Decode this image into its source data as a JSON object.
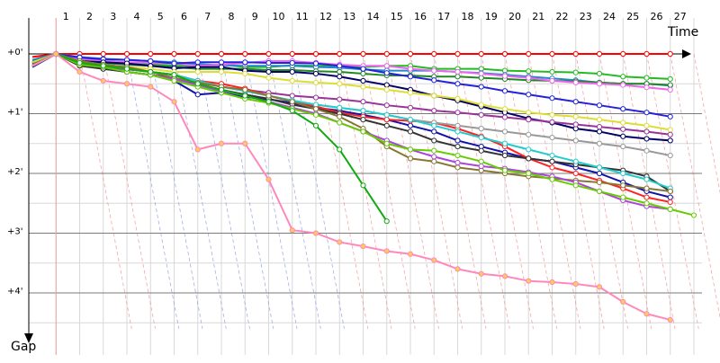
{
  "chart_data": {
    "type": "line",
    "xlabel": "Time",
    "ylabel": "Gap",
    "x_ticks": [
      "1",
      "2",
      "3",
      "4",
      "5",
      "6",
      "7",
      "8",
      "9",
      "10",
      "11",
      "12",
      "13",
      "14",
      "15",
      "16",
      "17",
      "18",
      "19",
      "20",
      "21",
      "22",
      "23",
      "24",
      "25",
      "26",
      "27"
    ],
    "y_ticks": [
      "+0'",
      "+1'",
      "+2'",
      "+3'",
      "+4'"
    ],
    "xlim": [
      0,
      28.6
    ],
    "ylim": [
      0,
      4.9
    ],
    "grid": true,
    "legend": "none",
    "series": [
      {
        "color": "#ff0000",
        "values": [
          0.05,
          0,
          0,
          0,
          0,
          0,
          0,
          0,
          0,
          0,
          0,
          0,
          0,
          0,
          0,
          0,
          0,
          0,
          0,
          0,
          0,
          0,
          0,
          0,
          0,
          0,
          0,
          0
        ]
      },
      {
        "color": "#22bb22",
        "values": [
          0.12,
          0,
          0.1,
          0.13,
          0.15,
          0.17,
          0.2,
          0.2,
          0.18,
          0.22,
          0.22,
          0.19,
          0.2,
          0.2,
          0.22,
          0.2,
          0.2,
          0.25,
          0.25,
          0.25,
          0.28,
          0.29,
          0.3,
          0.31,
          0.33,
          0.38,
          0.4,
          0.42
        ]
      },
      {
        "color": "#2288cc",
        "values": [
          0.1,
          0,
          0.05,
          0.08,
          0.1,
          0.12,
          0.14,
          0.17,
          0.19,
          0.2,
          0.2,
          0.2,
          0.22,
          0.23,
          0.26,
          0.28,
          0.28,
          0.28,
          0.3,
          0.32,
          0.35,
          0.38,
          0.41,
          0.44,
          0.48,
          0.5,
          0.5,
          0.53
        ]
      },
      {
        "color": "#228822",
        "values": [
          0.15,
          0,
          0.12,
          0.15,
          0.18,
          0.2,
          0.22,
          0.25,
          0.25,
          0.25,
          0.27,
          0.27,
          0.29,
          0.3,
          0.33,
          0.36,
          0.36,
          0.38,
          0.38,
          0.4,
          0.42,
          0.44,
          0.45,
          0.46,
          0.48,
          0.5,
          0.5,
          0.52
        ]
      },
      {
        "color": "#ee66ee",
        "values": [
          0.18,
          0,
          0.08,
          0.12,
          0.14,
          0.15,
          0.16,
          0.2,
          0.18,
          0.15,
          0.12,
          0.12,
          0.15,
          0.18,
          0.2,
          0.2,
          0.25,
          0.28,
          0.3,
          0.33,
          0.37,
          0.4,
          0.45,
          0.48,
          0.5,
          0.52,
          0.56,
          0.6
        ]
      },
      {
        "color": "#2222dd",
        "values": [
          0.14,
          0,
          0.06,
          0.09,
          0.1,
          0.12,
          0.16,
          0.14,
          0.14,
          0.14,
          0.15,
          0.15,
          0.16,
          0.2,
          0.25,
          0.32,
          0.38,
          0.44,
          0.5,
          0.55,
          0.62,
          0.68,
          0.74,
          0.8,
          0.86,
          0.92,
          0.98,
          1.05
        ]
      },
      {
        "color": "#000066",
        "values": [
          0.16,
          0,
          0.12,
          0.14,
          0.16,
          0.2,
          0.24,
          0.22,
          0.22,
          0.28,
          0.3,
          0.3,
          0.33,
          0.38,
          0.45,
          0.52,
          0.6,
          0.7,
          0.78,
          0.88,
          0.98,
          1.08,
          1.15,
          1.25,
          1.3,
          1.38,
          1.42,
          1.45
        ]
      },
      {
        "color": "#dddd33",
        "values": [
          0.14,
          0,
          0.12,
          0.18,
          0.22,
          0.25,
          0.3,
          0.3,
          0.3,
          0.33,
          0.4,
          0.45,
          0.48,
          0.5,
          0.55,
          0.6,
          0.65,
          0.7,
          0.75,
          0.85,
          0.92,
          0.98,
          1.02,
          1.05,
          1.1,
          1.15,
          1.2,
          1.27
        ]
      },
      {
        "color": "#993399",
        "values": [
          0.2,
          0,
          0.15,
          0.22,
          0.26,
          0.3,
          0.35,
          0.45,
          0.55,
          0.6,
          0.65,
          0.7,
          0.73,
          0.76,
          0.8,
          0.86,
          0.9,
          0.95,
          0.98,
          1.02,
          1.06,
          1.1,
          1.14,
          1.18,
          1.22,
          1.26,
          1.3,
          1.35
        ]
      },
      {
        "color": "#1111aa",
        "values": [
          0.22,
          0,
          0.18,
          0.25,
          0.3,
          0.35,
          0.45,
          0.68,
          0.65,
          0.72,
          0.76,
          0.82,
          0.9,
          0.95,
          1.02,
          1.1,
          1.2,
          1.3,
          1.45,
          1.55,
          1.65,
          1.75,
          1.8,
          1.9,
          2.0,
          2.15,
          2.3,
          2.4
        ]
      },
      {
        "color": "#ff2222",
        "values": [
          0.2,
          0,
          0.15,
          0.2,
          0.22,
          0.3,
          0.35,
          0.45,
          0.5,
          0.58,
          0.7,
          0.78,
          0.88,
          0.98,
          1.05,
          1.1,
          1.12,
          1.15,
          1.25,
          1.38,
          1.55,
          1.75,
          1.9,
          2.0,
          2.12,
          2.25,
          2.4,
          2.48
        ]
      },
      {
        "color": "#999999",
        "values": [
          0.18,
          0,
          0.15,
          0.2,
          0.25,
          0.3,
          0.35,
          0.45,
          0.55,
          0.62,
          0.7,
          0.78,
          0.85,
          0.9,
          0.95,
          1.02,
          1.1,
          1.15,
          1.2,
          1.25,
          1.3,
          1.35,
          1.4,
          1.45,
          1.5,
          1.55,
          1.62,
          1.7
        ]
      },
      {
        "color": "#333333",
        "values": [
          0.2,
          0,
          0.2,
          0.25,
          0.3,
          0.35,
          0.4,
          0.5,
          0.6,
          0.68,
          0.75,
          0.85,
          0.92,
          1.0,
          1.1,
          1.2,
          1.3,
          1.45,
          1.55,
          1.62,
          1.7,
          1.75,
          1.8,
          1.85,
          1.9,
          1.95,
          2.05,
          2.3
        ]
      },
      {
        "color": "#22cccc",
        "values": [
          0.18,
          0,
          0.15,
          0.2,
          0.25,
          0.3,
          0.35,
          0.45,
          0.55,
          0.62,
          0.7,
          0.78,
          0.85,
          0.9,
          0.95,
          1.02,
          1.1,
          1.2,
          1.3,
          1.4,
          1.5,
          1.6,
          1.7,
          1.8,
          1.9,
          2.0,
          2.1,
          2.25
        ]
      },
      {
        "color": "#887733",
        "values": [
          0.18,
          0,
          0.12,
          0.18,
          0.22,
          0.3,
          0.4,
          0.48,
          0.55,
          0.6,
          0.7,
          0.8,
          0.92,
          1.05,
          1.25,
          1.55,
          1.75,
          1.8,
          1.9,
          1.95,
          2.0,
          2.05,
          2.08,
          2.12,
          2.15,
          2.2,
          2.25,
          2.3
        ]
      },
      {
        "color": "#aa44dd",
        "values": [
          0.2,
          0,
          0.18,
          0.22,
          0.3,
          0.35,
          0.42,
          0.52,
          0.62,
          0.7,
          0.8,
          0.9,
          1.0,
          1.15,
          1.3,
          1.45,
          1.6,
          1.72,
          1.82,
          1.88,
          1.92,
          1.98,
          2.05,
          2.15,
          2.3,
          2.45,
          2.55,
          2.6
        ]
      },
      {
        "color": "#66cc00",
        "values": [
          0.2,
          0,
          0.18,
          0.22,
          0.3,
          0.35,
          0.45,
          0.55,
          0.65,
          0.75,
          0.82,
          0.92,
          1.02,
          1.15,
          1.3,
          1.5,
          1.6,
          1.62,
          1.7,
          1.8,
          1.95,
          2.0,
          2.1,
          2.2,
          2.3,
          2.4,
          2.5,
          2.6,
          2.7
        ]
      },
      {
        "color": "#11aa11",
        "values": [
          0.2,
          0,
          0.15,
          0.2,
          0.25,
          0.3,
          0.35,
          0.5,
          0.6,
          0.7,
          0.8,
          0.95,
          1.2,
          1.6,
          2.2,
          2.8
        ]
      },
      {
        "color": "#ff88bb",
        "values": [
          0.2,
          0,
          0.3,
          0.45,
          0.5,
          0.55,
          0.8,
          1.6,
          1.5,
          1.5,
          2.1,
          2.95,
          3.0,
          3.15,
          3.22,
          3.3,
          3.35,
          3.45,
          3.6,
          3.68,
          3.72,
          3.8,
          3.82,
          3.85,
          3.9,
          4.15,
          4.35,
          4.45
        ]
      }
    ]
  }
}
